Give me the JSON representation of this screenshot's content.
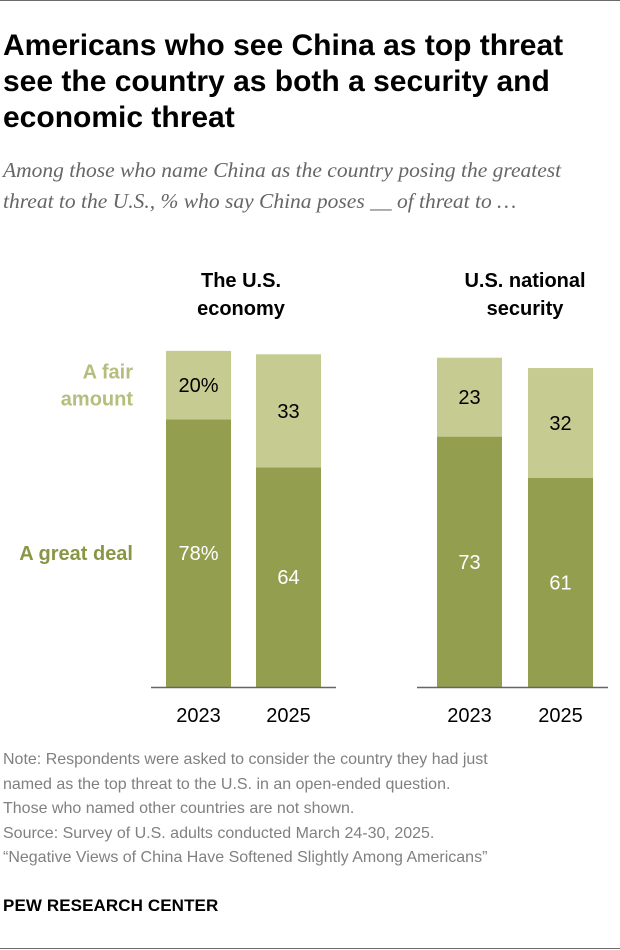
{
  "title": "Americans who see China as top threat see the country as both a security and economic threat",
  "subtitle": "Among those who name China as the country posing the greatest threat to the U.S., % who say China poses __ of threat to …",
  "notes": [
    "Note: Respondents were asked to consider the country they had just",
    "named as the top threat to the U.S. in an open-ended question.",
    "Those who named other countries are not shown.",
    "Source: Survey of U.S. adults conducted March 24-30, 2025.",
    "“Negative Views of China Have Softened Slightly Among Americans”"
  ],
  "brand": "PEW RESEARCH CENTER",
  "colors": {
    "great_deal": "#939f4f",
    "fair_amount": "#c6cc91",
    "great_deal_legend": "#8a9645",
    "fair_amount_legend": "#b7bd7d",
    "axis": "#666666"
  },
  "chart_data": {
    "type": "bar",
    "stacked": true,
    "series_order": [
      "A great deal",
      "A fair amount"
    ],
    "legend_labels": [
      {
        "series": "A fair amount",
        "lines": [
          "A fair",
          "amount"
        ]
      },
      {
        "series": "A great deal",
        "lines": [
          "A great deal"
        ]
      }
    ],
    "panels": [
      {
        "title_lines": [
          "The U.S.",
          "economy"
        ],
        "categories": [
          "2023",
          "2025"
        ],
        "series": [
          {
            "name": "A great deal",
            "values": [
              78,
              64
            ],
            "labels": [
              "78%",
              "64"
            ]
          },
          {
            "name": "A fair amount",
            "values": [
              20,
              33
            ],
            "labels": [
              "20%",
              "33"
            ]
          }
        ]
      },
      {
        "title_lines": [
          "U.S. national",
          "security"
        ],
        "categories": [
          "2023",
          "2025"
        ],
        "series": [
          {
            "name": "A great deal",
            "values": [
              73,
              61
            ],
            "labels": [
              "73",
              "61"
            ]
          },
          {
            "name": "A fair amount",
            "values": [
              23,
              32
            ],
            "labels": [
              "23",
              "32"
            ]
          }
        ]
      }
    ],
    "ylim": [
      0,
      100
    ],
    "grid": false
  }
}
